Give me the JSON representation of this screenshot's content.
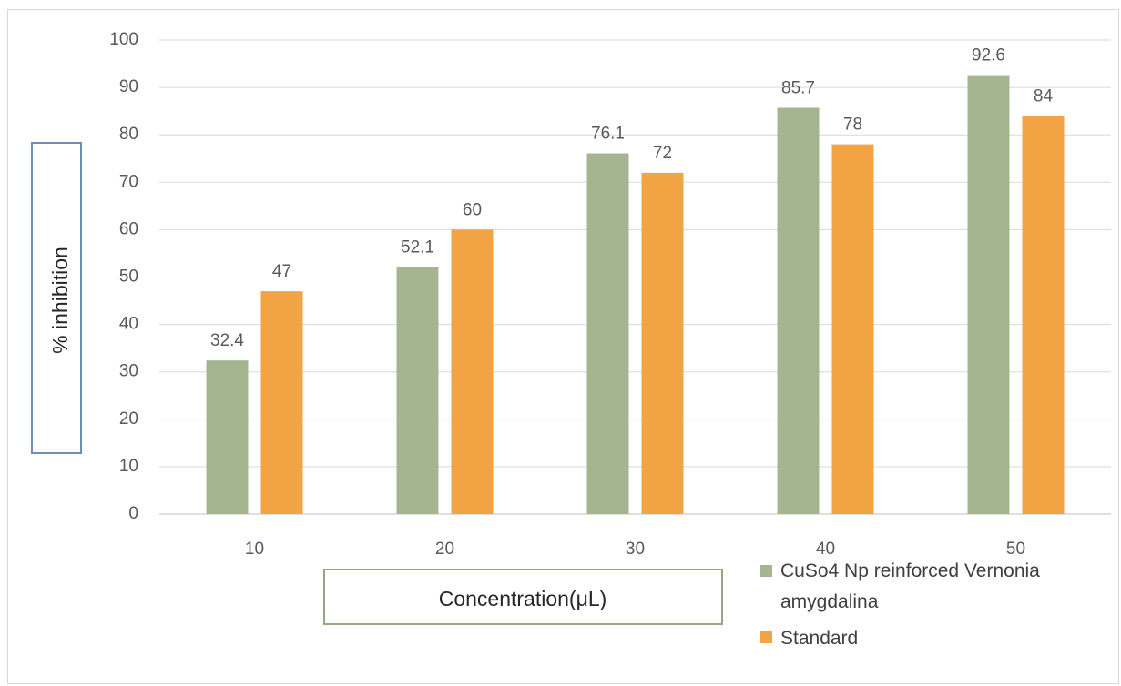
{
  "chart_data": {
    "type": "bar",
    "categories": [
      "10",
      "20",
      "30",
      "40",
      "50"
    ],
    "series": [
      {
        "name": "CuSo4 Np reinforced Vernonia amygdalina",
        "values": [
          32.4,
          52.1,
          76.1,
          85.7,
          92.6
        ],
        "color": "#a4b590"
      },
      {
        "name": "Standard",
        "values": [
          47,
          60,
          72,
          78,
          84
        ],
        "color": "#f2a444"
      }
    ],
    "data_labels": [
      [
        "32.4",
        "52.1",
        "76.1",
        "85.7",
        "92.6"
      ],
      [
        "47",
        "60",
        "72",
        "78",
        "84"
      ]
    ],
    "ylim": [
      0,
      100
    ],
    "yticks": [
      "0",
      "10",
      "20",
      "30",
      "40",
      "50",
      "60",
      "70",
      "80",
      "90",
      "100"
    ],
    "xlabel": "Concentration(μL)",
    "ylabel": "% inhibition",
    "grid": true,
    "legend_position": "bottom-right",
    "label_box_colors": {
      "ylabel_border": "#6e8fb8",
      "xlabel_border": "#95a883"
    }
  }
}
